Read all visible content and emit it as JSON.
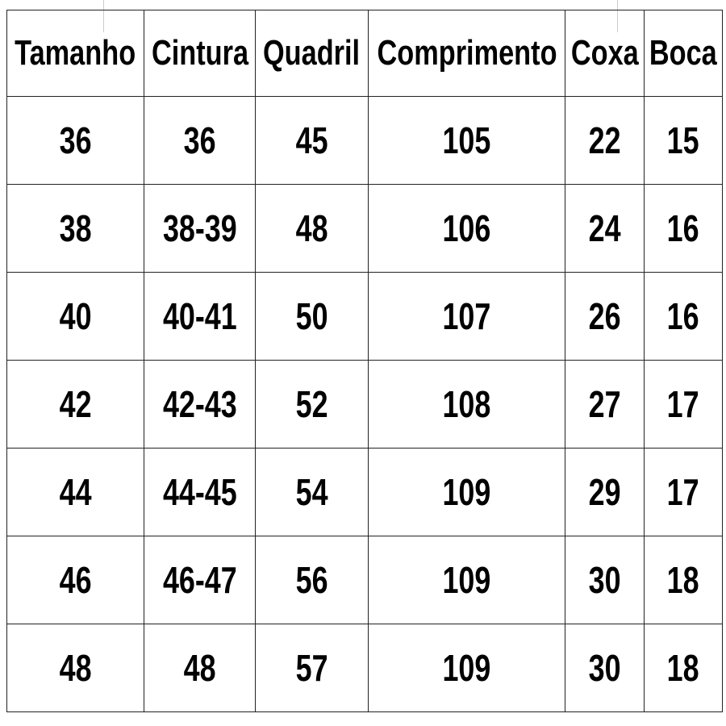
{
  "table": {
    "headers": [
      "Tamanho",
      "Cintura",
      "Quadril",
      "Comprimento",
      "Coxa",
      "Boca"
    ],
    "rows": [
      [
        "36",
        "36",
        "45",
        "105",
        "22",
        "15"
      ],
      [
        "38",
        "38-39",
        "48",
        "106",
        "24",
        "16"
      ],
      [
        "40",
        "40-41",
        "50",
        "107",
        "26",
        "16"
      ],
      [
        "42",
        "42-43",
        "52",
        "108",
        "27",
        "17"
      ],
      [
        "44",
        "44-45",
        "54",
        "109",
        "29",
        "17"
      ],
      [
        "46",
        "46-47",
        "56",
        "109",
        "30",
        "18"
      ],
      [
        "48",
        "48",
        "57",
        "109",
        "30",
        "18"
      ]
    ]
  }
}
